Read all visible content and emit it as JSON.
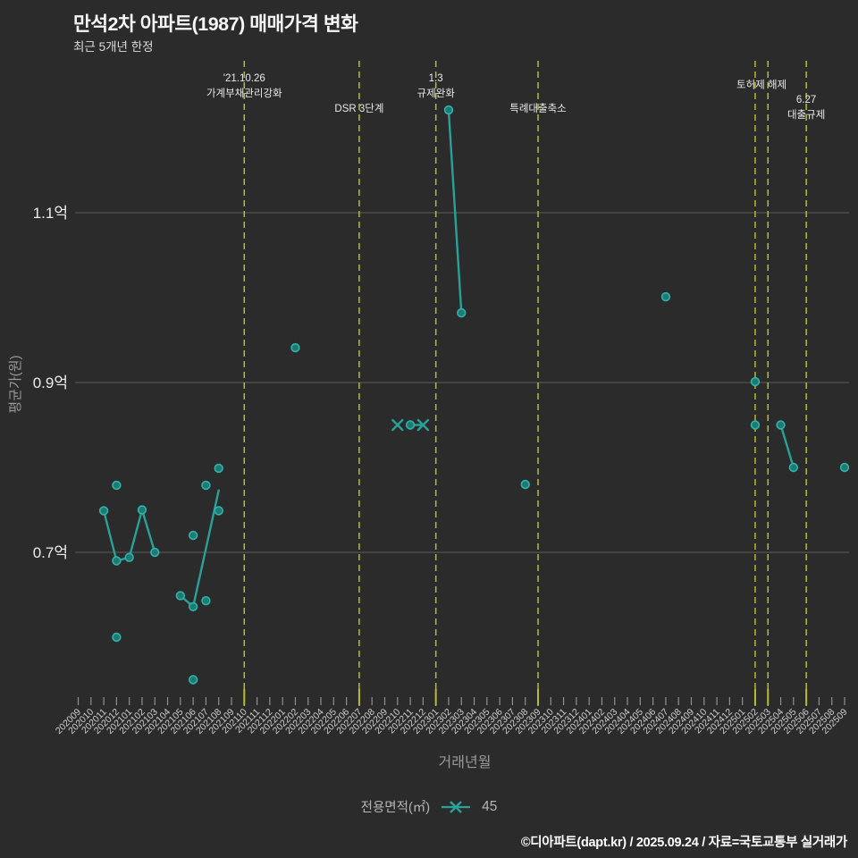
{
  "header": {
    "title": "만석2차 아파트(1987) 매매가격 변화",
    "subtitle": "최근 5개년 한정"
  },
  "legend": {
    "label": "전용면적(㎡)",
    "series_value": "45"
  },
  "footer": {
    "credit": "©디아파트(dapt.kr) / 2025.09.24 / 자료=국토교통부 실거래가"
  },
  "chart_data": {
    "type": "scatter",
    "title": "만석2차 아파트(1987) 매매가격 변화",
    "subtitle": "최근 5개년 한정",
    "xlabel": "거래년월",
    "ylabel": "평균가(원)",
    "value_unit": "억",
    "grid": "horizontal",
    "legend_position": "bottom-center",
    "colors": {
      "background": "#2b2b2b",
      "accent": "#2aa198",
      "marker_fill": "#1f7a74",
      "marker_stroke": "#2fb3a8",
      "event_line": "#b8bd2f",
      "gridline": "#5c5c5c",
      "tick_label": "#cfcfcf",
      "axis_title": "#999999",
      "annotation": "#e9e9e9",
      "y_tick_label": "#ececec"
    },
    "ylim": [
      0.52,
      1.3
    ],
    "y_ticks": [
      {
        "value": 0.7,
        "label": "0.7억"
      },
      {
        "value": 0.9,
        "label": "0.9억"
      },
      {
        "value": 1.1,
        "label": "1.1억"
      }
    ],
    "x_categories": [
      "202009",
      "202010",
      "202011",
      "202012",
      "202101",
      "202102",
      "202103",
      "202104",
      "202105",
      "202106",
      "202107",
      "202108",
      "202109",
      "202110",
      "202111",
      "202112",
      "202201",
      "202202",
      "202203",
      "202204",
      "202205",
      "202206",
      "202207",
      "202208",
      "202209",
      "202210",
      "202211",
      "202212",
      "202301",
      "202302",
      "202303",
      "202304",
      "202305",
      "202306",
      "202307",
      "202308",
      "202309",
      "202310",
      "202311",
      "202312",
      "202401",
      "202402",
      "202403",
      "202404",
      "202405",
      "202406",
      "202407",
      "202408",
      "202409",
      "202410",
      "202411",
      "202412",
      "202501",
      "202502",
      "202503",
      "202504",
      "202505",
      "202506",
      "202507",
      "202508",
      "202509"
    ],
    "series": [
      {
        "name": "45",
        "legend_label": "전용면적(㎡)",
        "color": "#2aa198",
        "marker": "x-line"
      }
    ],
    "event_lines": [
      "202110",
      "202207",
      "202301",
      "202309",
      "202502",
      "202503",
      "202506"
    ],
    "event_labels": [
      {
        "text": "'21.10.26",
        "months": [
          "202110"
        ],
        "row": 0
      },
      {
        "text": "가계부채관리강화",
        "months": [
          "202110"
        ],
        "row": 1
      },
      {
        "text": "DSR 3단계",
        "months": [
          "202207"
        ],
        "row": 2
      },
      {
        "text": "1.3",
        "months": [
          "202301"
        ],
        "row": 0
      },
      {
        "text": "규제완화",
        "months": [
          "202301"
        ],
        "row": 1
      },
      {
        "text": "특례대출축소",
        "months": [
          "202309"
        ],
        "row": 2
      },
      {
        "text": "토허제 해제",
        "months": [
          "202502",
          "202503"
        ],
        "row": 0.45
      },
      {
        "text": "6.27",
        "months": [
          "202506"
        ],
        "row": 1.4
      },
      {
        "text": "대출규제",
        "months": [
          "202506"
        ],
        "row": 2.4
      }
    ],
    "lines": [
      [
        {
          "m": "202011",
          "v": 0.749,
          "marker": "circle"
        },
        {
          "m": "202012",
          "v": 0.69,
          "marker": "circle"
        },
        {
          "m": "202101",
          "v": 0.694,
          "marker": "circle"
        },
        {
          "m": "202102",
          "v": 0.75,
          "marker": "circle"
        },
        {
          "m": "202103",
          "v": 0.7,
          "marker": "circle"
        }
      ],
      [
        {
          "m": "202105",
          "v": 0.649,
          "marker": "circle"
        },
        {
          "m": "202106",
          "v": 0.636,
          "marker": "circle"
        },
        {
          "m": "202108",
          "v": 0.773,
          "marker": "none"
        }
      ],
      [
        {
          "m": "202302",
          "v": 1.221,
          "marker": "circle"
        },
        {
          "m": "202303",
          "v": 0.982,
          "marker": "circle"
        }
      ],
      [
        {
          "m": "202211",
          "v": 0.85,
          "marker": "circle"
        },
        {
          "m": "202212",
          "v": 0.85,
          "marker": "x"
        }
      ],
      [
        {
          "m": "202504",
          "v": 0.85,
          "marker": "circle"
        },
        {
          "m": "202505",
          "v": 0.8,
          "marker": "circle"
        }
      ]
    ],
    "scatter_points": [
      {
        "m": "202012",
        "v": 0.779
      },
      {
        "m": "202012",
        "v": 0.6
      },
      {
        "m": "202106",
        "v": 0.72
      },
      {
        "m": "202106",
        "v": 0.55
      },
      {
        "m": "202107",
        "v": 0.779
      },
      {
        "m": "202107",
        "v": 0.643
      },
      {
        "m": "202108",
        "v": 0.799
      },
      {
        "m": "202108",
        "v": 0.749
      },
      {
        "m": "202202",
        "v": 0.941
      },
      {
        "m": "202308",
        "v": 0.78
      },
      {
        "m": "202407",
        "v": 1.001
      },
      {
        "m": "202502",
        "v": 0.901
      },
      {
        "m": "202502",
        "v": 0.85
      },
      {
        "m": "202509",
        "v": 0.8
      }
    ],
    "x_marker_points": [
      {
        "m": "202210",
        "v": 0.85
      }
    ]
  }
}
